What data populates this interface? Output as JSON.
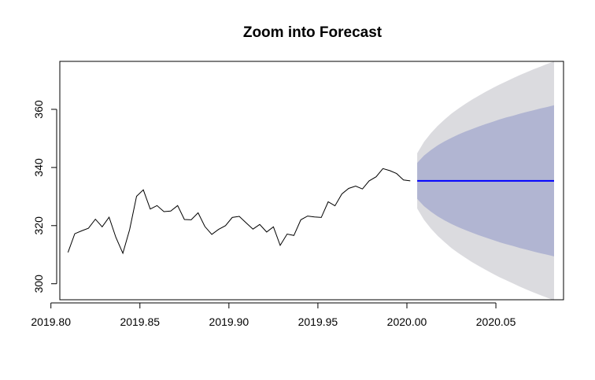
{
  "chart_data": {
    "type": "line",
    "title": "Zoom into Forecast",
    "xlabel": "",
    "ylabel": "",
    "xlim": [
      2019.805,
      2020.088
    ],
    "ylim": [
      294.5,
      376.5
    ],
    "x_ticks": [
      2019.8,
      2019.85,
      2019.9,
      2019.95,
      2020.0,
      2020.05
    ],
    "x_tick_labels": [
      "2019.80",
      "2019.85",
      "2019.90",
      "2019.95",
      "2020.00",
      "2020.05"
    ],
    "y_ticks": [
      300,
      320,
      340,
      360
    ],
    "y_tick_labels": [
      "300",
      "320",
      "340",
      "360"
    ],
    "grid": false,
    "colors": {
      "observed": "#000000",
      "forecast": "#0000ff",
      "band_80": "#b1b5d2",
      "band_95": "#dbdbdf"
    },
    "observed": {
      "x": [
        2019.8096,
        2019.8134,
        2019.8173,
        2019.8211,
        2019.825,
        2019.8288,
        2019.8327,
        2019.8365,
        2019.8404,
        2019.8442,
        2019.8481,
        2019.8519,
        2019.8558,
        2019.8596,
        2019.8635,
        2019.8673,
        2019.8712,
        2019.875,
        2019.8788,
        2019.8827,
        2019.8865,
        2019.8904,
        2019.8942,
        2019.8981,
        2019.9019,
        2019.9058,
        2019.9096,
        2019.9135,
        2019.9173,
        2019.9212,
        2019.925,
        2019.9288,
        2019.9327,
        2019.9365,
        2019.9404,
        2019.9442,
        2019.9481,
        2019.9519,
        2019.9558,
        2019.9596,
        2019.9635,
        2019.9673,
        2019.9712,
        2019.975,
        2019.9788,
        2019.9827,
        2019.9865,
        2019.9904,
        2019.9942,
        2019.9981,
        2020.0019
      ],
      "y": [
        310.8,
        317.2,
        318.2,
        319.1,
        322.2,
        319.6,
        322.9,
        316.0,
        310.5,
        318.6,
        330.1,
        332.3,
        325.7,
        326.9,
        324.8,
        325.0,
        326.9,
        322.1,
        322.0,
        324.4,
        319.7,
        317.0,
        318.7,
        320.0,
        322.8,
        323.2,
        321.0,
        318.8,
        320.4,
        317.8,
        319.6,
        313.2,
        317.1,
        316.6,
        322.0,
        323.3,
        323.0,
        322.8,
        328.2,
        326.8,
        330.9,
        332.8,
        333.6,
        332.6,
        335.4,
        336.8,
        339.6,
        338.9,
        337.9,
        335.7,
        335.4
      ]
    },
    "forecast": {
      "x": [
        2020.0058,
        2020.0096,
        2020.0135,
        2020.0173,
        2020.0212,
        2020.025,
        2020.0288,
        2020.0327,
        2020.0365,
        2020.0404,
        2020.0442,
        2020.0481,
        2020.0519,
        2020.0558,
        2020.0596,
        2020.0635,
        2020.0673,
        2020.0712,
        2020.075,
        2020.0788,
        2020.0827
      ],
      "mean": [
        335.4,
        335.4,
        335.4,
        335.4,
        335.4,
        335.4,
        335.4,
        335.4,
        335.4,
        335.4,
        335.4,
        335.4,
        335.4,
        335.4,
        335.4,
        335.4,
        335.4,
        335.4,
        335.4,
        335.4,
        335.4
      ],
      "lo80": [
        329.2,
        326.7,
        324.8,
        323.2,
        321.8,
        320.6,
        319.5,
        318.5,
        317.6,
        316.7,
        315.9,
        315.1,
        314.3,
        313.6,
        313.0,
        312.3,
        311.7,
        311.1,
        310.5,
        310.0,
        309.4
      ],
      "hi80": [
        341.6,
        344.1,
        346.0,
        347.6,
        349.0,
        350.2,
        351.3,
        352.3,
        353.2,
        354.1,
        354.9,
        355.7,
        356.5,
        357.2,
        357.8,
        358.5,
        359.1,
        359.7,
        360.3,
        360.8,
        361.4
      ],
      "lo95": [
        325.9,
        322.0,
        319.0,
        316.5,
        314.3,
        312.3,
        310.6,
        309.0,
        307.5,
        306.1,
        304.8,
        303.5,
        302.3,
        301.2,
        300.1,
        299.0,
        298.0,
        297.0,
        296.1,
        295.2,
        294.3
      ],
      "hi95": [
        344.9,
        348.8,
        351.8,
        354.3,
        356.5,
        358.5,
        360.2,
        361.8,
        363.3,
        364.7,
        366.0,
        367.3,
        368.5,
        369.6,
        370.7,
        371.8,
        372.8,
        373.8,
        374.7,
        375.6,
        376.5
      ]
    }
  }
}
